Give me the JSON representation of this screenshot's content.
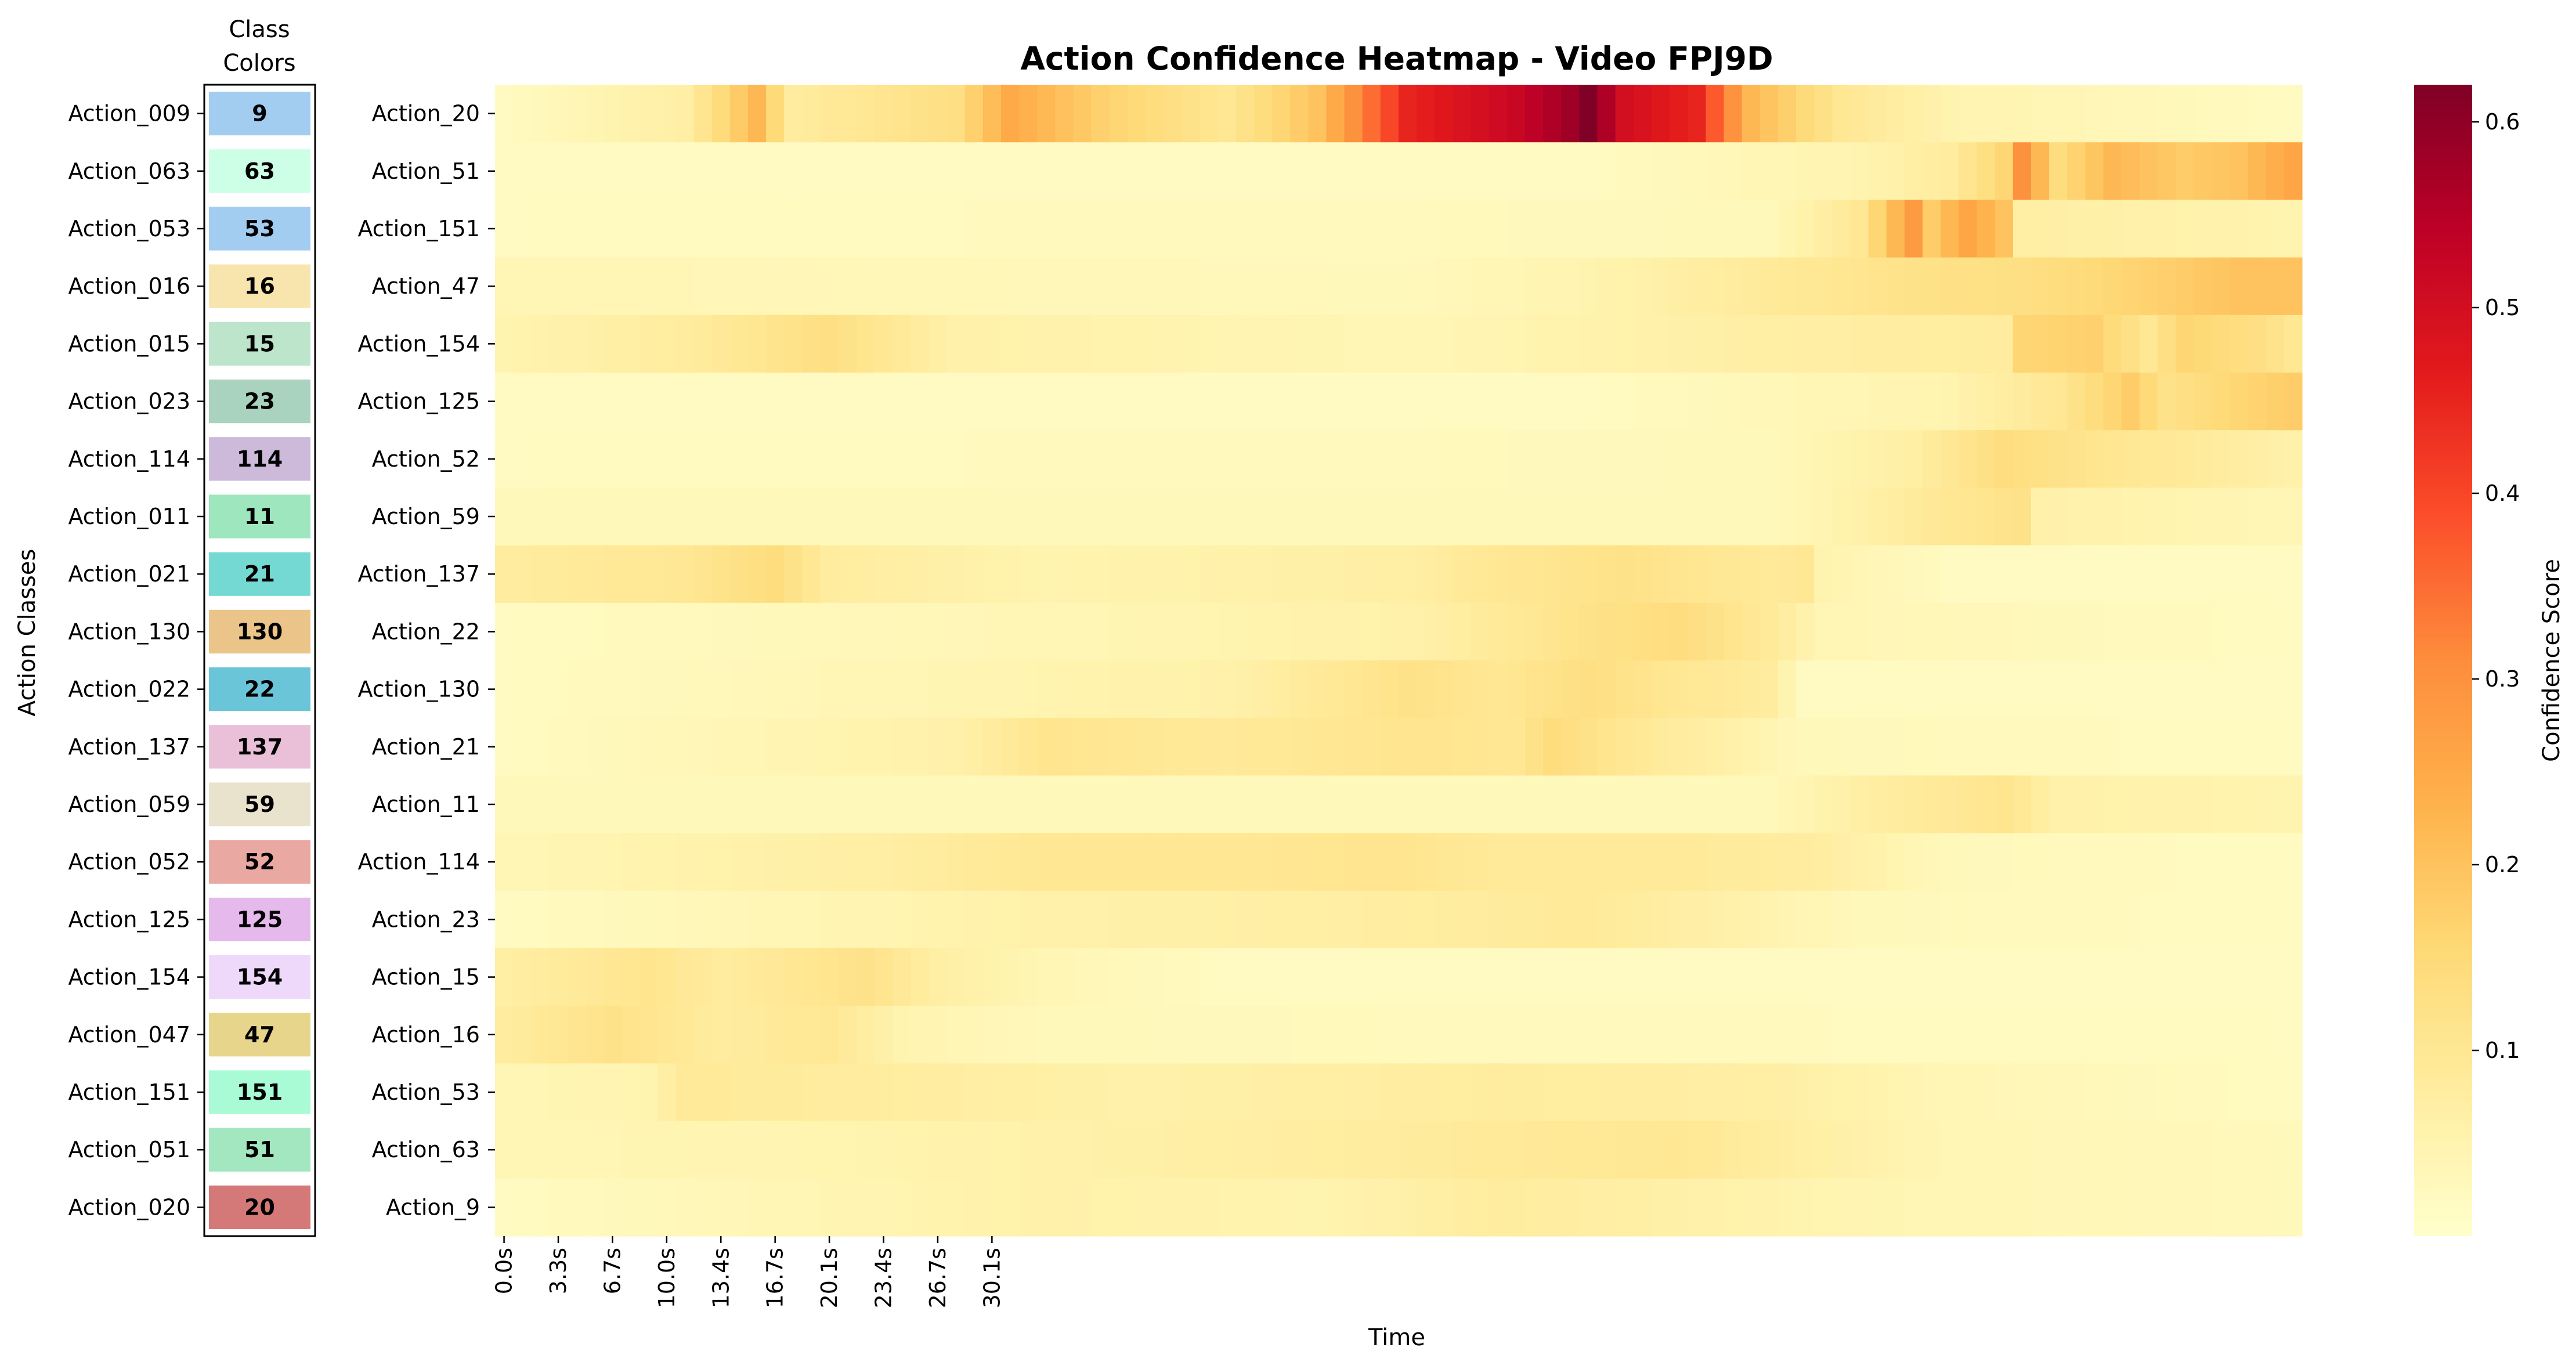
{
  "chart_data": {
    "type": "heatmap",
    "title": "Action Confidence Heatmap - Video FPJ9D",
    "xlabel": "Time",
    "ylabel": "Action Classes",
    "colorbar": {
      "label": "Confidence Score",
      "colormap": "YlOrRd",
      "range": [
        0.0,
        0.62
      ],
      "ticks": [
        0.1,
        0.2,
        0.3,
        0.4,
        0.5,
        0.6
      ],
      "tick_labels": [
        "0.1",
        "0.2",
        "0.3",
        "0.4",
        "0.5",
        "0.6"
      ]
    },
    "x_tick_labels": [
      "0.0s",
      "3.3s",
      "6.7s",
      "10.0s",
      "13.4s",
      "16.7s",
      "20.1s",
      "23.4s",
      "26.7s",
      "30.1s"
    ],
    "time_steps": 100,
    "rows": [
      "Action_20",
      "Action_51",
      "Action_151",
      "Action_47",
      "Action_154",
      "Action_125",
      "Action_52",
      "Action_59",
      "Action_137",
      "Action_22",
      "Action_130",
      "Action_21",
      "Action_11",
      "Action_114",
      "Action_23",
      "Action_15",
      "Action_16",
      "Action_53",
      "Action_63",
      "Action_9"
    ],
    "row_profiles": [
      [
        [
          0,
          0.02
        ],
        [
          10,
          0.07
        ],
        [
          14,
          0.22
        ],
        [
          16,
          0.08
        ],
        [
          25,
          0.13
        ],
        [
          28,
          0.25
        ],
        [
          33,
          0.17
        ],
        [
          40,
          0.1
        ],
        [
          45,
          0.2
        ],
        [
          50,
          0.45
        ],
        [
          56,
          0.52
        ],
        [
          59,
          0.58
        ],
        [
          60,
          0.62
        ],
        [
          62,
          0.5
        ],
        [
          66,
          0.45
        ],
        [
          69,
          0.22
        ],
        [
          74,
          0.1
        ],
        [
          80,
          0.05
        ],
        [
          99,
          0.02
        ]
      ],
      [
        [
          0,
          0.02
        ],
        [
          60,
          0.02
        ],
        [
          75,
          0.05
        ],
        [
          80,
          0.08
        ],
        [
          83,
          0.16
        ],
        [
          84,
          0.3
        ],
        [
          85,
          0.22
        ],
        [
          86,
          0.14
        ],
        [
          89,
          0.22
        ],
        [
          93,
          0.18
        ],
        [
          96,
          0.2
        ],
        [
          99,
          0.26
        ]
      ],
      [
        [
          0,
          0.02
        ],
        [
          70,
          0.03
        ],
        [
          75,
          0.1
        ],
        [
          77,
          0.22
        ],
        [
          78,
          0.28
        ],
        [
          79,
          0.18
        ],
        [
          81,
          0.26
        ],
        [
          83,
          0.2
        ],
        [
          84,
          0.07
        ],
        [
          99,
          0.05
        ]
      ],
      [
        [
          0,
          0.04
        ],
        [
          50,
          0.03
        ],
        [
          60,
          0.05
        ],
        [
          70,
          0.09
        ],
        [
          78,
          0.12
        ],
        [
          84,
          0.13
        ],
        [
          88,
          0.15
        ],
        [
          93,
          0.18
        ],
        [
          96,
          0.2
        ],
        [
          99,
          0.2
        ]
      ],
      [
        [
          0,
          0.05
        ],
        [
          10,
          0.08
        ],
        [
          18,
          0.13
        ],
        [
          25,
          0.06
        ],
        [
          50,
          0.04
        ],
        [
          70,
          0.07
        ],
        [
          83,
          0.08
        ],
        [
          84,
          0.16
        ],
        [
          88,
          0.17
        ],
        [
          91,
          0.1
        ],
        [
          93,
          0.16
        ],
        [
          97,
          0.13
        ],
        [
          99,
          0.1
        ]
      ],
      [
        [
          0,
          0.02
        ],
        [
          60,
          0.02
        ],
        [
          80,
          0.05
        ],
        [
          86,
          0.1
        ],
        [
          90,
          0.18
        ],
        [
          92,
          0.12
        ],
        [
          96,
          0.16
        ],
        [
          99,
          0.18
        ]
      ],
      [
        [
          0,
          0.02
        ],
        [
          70,
          0.03
        ],
        [
          78,
          0.07
        ],
        [
          83,
          0.14
        ],
        [
          86,
          0.12
        ],
        [
          90,
          0.1
        ],
        [
          95,
          0.08
        ],
        [
          99,
          0.06
        ]
      ],
      [
        [
          0,
          0.03
        ],
        [
          70,
          0.03
        ],
        [
          75,
          0.06
        ],
        [
          80,
          0.1
        ],
        [
          84,
          0.12
        ],
        [
          85,
          0.06
        ],
        [
          99,
          0.04
        ]
      ],
      [
        [
          0,
          0.08
        ],
        [
          10,
          0.1
        ],
        [
          15,
          0.14
        ],
        [
          18,
          0.08
        ],
        [
          30,
          0.05
        ],
        [
          50,
          0.07
        ],
        [
          55,
          0.1
        ],
        [
          62,
          0.12
        ],
        [
          70,
          0.09
        ],
        [
          72,
          0.1
        ],
        [
          73,
          0.05
        ],
        [
          80,
          0.02
        ],
        [
          99,
          0.02
        ]
      ],
      [
        [
          0,
          0.02
        ],
        [
          30,
          0.04
        ],
        [
          50,
          0.06
        ],
        [
          60,
          0.12
        ],
        [
          65,
          0.14
        ],
        [
          70,
          0.09
        ],
        [
          73,
          0.04
        ],
        [
          99,
          0.02
        ]
      ],
      [
        [
          0,
          0.02
        ],
        [
          20,
          0.04
        ],
        [
          40,
          0.06
        ],
        [
          50,
          0.12
        ],
        [
          55,
          0.1
        ],
        [
          60,
          0.13
        ],
        [
          65,
          0.1
        ],
        [
          70,
          0.08
        ],
        [
          72,
          0.02
        ],
        [
          99,
          0.02
        ]
      ],
      [
        [
          0,
          0.02
        ],
        [
          25,
          0.06
        ],
        [
          30,
          0.11
        ],
        [
          40,
          0.09
        ],
        [
          50,
          0.11
        ],
        [
          56,
          0.1
        ],
        [
          58,
          0.14
        ],
        [
          62,
          0.1
        ],
        [
          68,
          0.06
        ],
        [
          72,
          0.03
        ],
        [
          99,
          0.02
        ]
      ],
      [
        [
          0,
          0.03
        ],
        [
          70,
          0.03
        ],
        [
          75,
          0.07
        ],
        [
          83,
          0.11
        ],
        [
          86,
          0.06
        ],
        [
          99,
          0.05
        ]
      ],
      [
        [
          0,
          0.04
        ],
        [
          20,
          0.07
        ],
        [
          30,
          0.1
        ],
        [
          40,
          0.1
        ],
        [
          50,
          0.11
        ],
        [
          55,
          0.09
        ],
        [
          65,
          0.09
        ],
        [
          72,
          0.08
        ],
        [
          80,
          0.03
        ],
        [
          99,
          0.02
        ]
      ],
      [
        [
          0,
          0.02
        ],
        [
          15,
          0.04
        ],
        [
          30,
          0.06
        ],
        [
          45,
          0.07
        ],
        [
          60,
          0.09
        ],
        [
          68,
          0.06
        ],
        [
          75,
          0.03
        ],
        [
          99,
          0.02
        ]
      ],
      [
        [
          0,
          0.07
        ],
        [
          8,
          0.11
        ],
        [
          12,
          0.08
        ],
        [
          20,
          0.12
        ],
        [
          24,
          0.07
        ],
        [
          30,
          0.04
        ],
        [
          40,
          0.02
        ],
        [
          99,
          0.02
        ]
      ],
      [
        [
          0,
          0.08
        ],
        [
          6,
          0.12
        ],
        [
          12,
          0.08
        ],
        [
          18,
          0.1
        ],
        [
          22,
          0.05
        ],
        [
          30,
          0.03
        ],
        [
          99,
          0.02
        ]
      ],
      [
        [
          0,
          0.04
        ],
        [
          8,
          0.05
        ],
        [
          10,
          0.09
        ],
        [
          20,
          0.08
        ],
        [
          35,
          0.06
        ],
        [
          55,
          0.08
        ],
        [
          70,
          0.07
        ],
        [
          80,
          0.04
        ],
        [
          99,
          0.02
        ]
      ],
      [
        [
          0,
          0.04
        ],
        [
          20,
          0.05
        ],
        [
          40,
          0.07
        ],
        [
          55,
          0.09
        ],
        [
          65,
          0.1
        ],
        [
          72,
          0.07
        ],
        [
          80,
          0.04
        ],
        [
          99,
          0.03
        ]
      ],
      [
        [
          0,
          0.02
        ],
        [
          15,
          0.04
        ],
        [
          30,
          0.06
        ],
        [
          45,
          0.05
        ],
        [
          55,
          0.08
        ],
        [
          62,
          0.07
        ],
        [
          72,
          0.05
        ],
        [
          80,
          0.04
        ],
        [
          99,
          0.03
        ]
      ]
    ],
    "class_colors": {
      "title": "Class\nColors",
      "title_lines": [
        "Class",
        "Colors"
      ],
      "labels": [
        "Action_009",
        "Action_063",
        "Action_053",
        "Action_016",
        "Action_015",
        "Action_023",
        "Action_114",
        "Action_011",
        "Action_021",
        "Action_130",
        "Action_022",
        "Action_137",
        "Action_059",
        "Action_052",
        "Action_125",
        "Action_154",
        "Action_047",
        "Action_151",
        "Action_051",
        "Action_020"
      ],
      "numbers": [
        "9",
        "63",
        "53",
        "16",
        "15",
        "23",
        "114",
        "11",
        "21",
        "130",
        "22",
        "137",
        "59",
        "52",
        "125",
        "154",
        "47",
        "151",
        "51",
        "20"
      ],
      "colors": [
        "#a3cdf0",
        "#ccffe6",
        "#a3cdf0",
        "#f7e5ad",
        "#bde5cc",
        "#a9d3bf",
        "#cdb9da",
        "#9ee6bd",
        "#73d9d2",
        "#ebc48a",
        "#6bc5d8",
        "#e9c0d8",
        "#e9e2cd",
        "#e9a8a1",
        "#e6b9ec",
        "#efd9fb",
        "#e8d58c",
        "#a8fbd4",
        "#a3e7c0",
        "#d47878"
      ]
    }
  }
}
